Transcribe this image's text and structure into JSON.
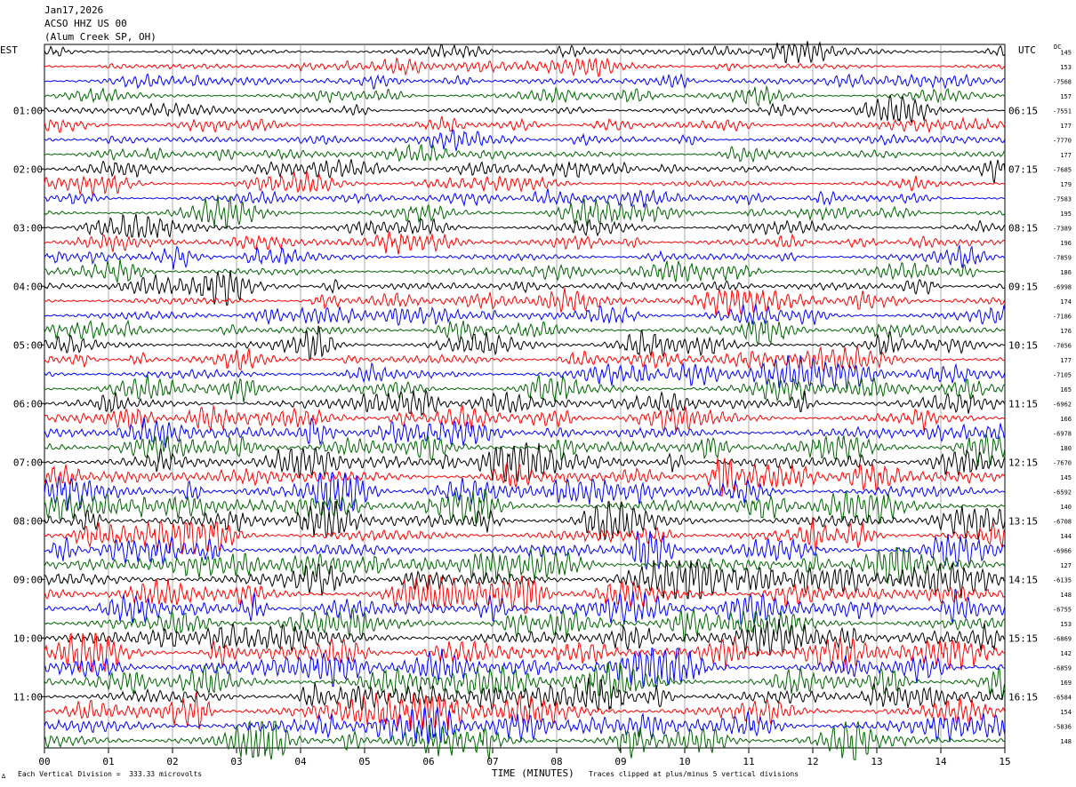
{
  "header": {
    "date": "Jan17,2026",
    "station": "ACSO HHZ US 00",
    "location": "(Alum Creek SP, OH)"
  },
  "labels": {
    "tz_left": "EST",
    "tz_right": "UTC",
    "dc": "DC",
    "vertical_division": "Each Vertical Division =  333.33 microvolts",
    "clip_note": "Traces clipped at plus/minus 5 vertical divisions",
    "logo": "∆"
  },
  "chart_data": {
    "type": "line",
    "xlabel": "TIME (MINUTES)",
    "xlim": [
      0,
      15
    ],
    "x_ticks": [
      "00",
      "01",
      "02",
      "03",
      "04",
      "05",
      "06",
      "07",
      "08",
      "09",
      "10",
      "11",
      "12",
      "13",
      "14",
      "15"
    ],
    "grid": true,
    "trace_colors": [
      "#000000",
      "#ff0000",
      "#0000ff",
      "#006400"
    ],
    "left_hour_labels": [
      "01:00",
      "02:00",
      "03:00",
      "04:00",
      "05:00",
      "06:00",
      "07:00",
      "08:00",
      "09:00",
      "10:00",
      "11:00"
    ],
    "right_hour_labels": [
      "06:15",
      "07:15",
      "08:15",
      "09:15",
      "10:15",
      "11:15",
      "12:15",
      "13:15",
      "14:15",
      "15:15",
      "16:15"
    ],
    "hour_label_first_row": 4,
    "rows_per_hour": 4,
    "dc_values": [
      "145",
      "153",
      "-7568",
      "157",
      "-7551",
      "177",
      "-7770",
      "177",
      "-7685",
      "179",
      "-7583",
      "195",
      "-7389",
      "196",
      "-7859",
      "186",
      "-6998",
      "174",
      "-7186",
      "176",
      "-7056",
      "177",
      "-7105",
      "165",
      "-6962",
      "166",
      "-6978",
      "180",
      "-7670",
      "145",
      "-6592",
      "140",
      "-6708",
      "144",
      "-6966",
      "127",
      "-6135",
      "148",
      "-6755",
      "153",
      "-6869",
      "142",
      "-6859",
      "169",
      "-6584",
      "154",
      "-5836",
      "148"
    ],
    "traces": [
      {
        "amplitude": 0.28,
        "seed": 1
      },
      {
        "amplitude": 0.28,
        "seed": 2
      },
      {
        "amplitude": 0.3,
        "seed": 3
      },
      {
        "amplitude": 0.3,
        "seed": 4
      },
      {
        "amplitude": 0.3,
        "seed": 5
      },
      {
        "amplitude": 0.3,
        "seed": 6
      },
      {
        "amplitude": 0.3,
        "seed": 7
      },
      {
        "amplitude": 0.3,
        "seed": 8
      },
      {
        "amplitude": 0.32,
        "seed": 9
      },
      {
        "amplitude": 0.32,
        "seed": 10
      },
      {
        "amplitude": 0.32,
        "seed": 11
      },
      {
        "amplitude": 0.34,
        "seed": 12
      },
      {
        "amplitude": 0.34,
        "seed": 13
      },
      {
        "amplitude": 0.34,
        "seed": 14
      },
      {
        "amplitude": 0.36,
        "seed": 15
      },
      {
        "amplitude": 0.36,
        "seed": 16
      },
      {
        "amplitude": 0.4,
        "seed": 17
      },
      {
        "amplitude": 0.4,
        "seed": 18
      },
      {
        "amplitude": 0.42,
        "seed": 19
      },
      {
        "amplitude": 0.42,
        "seed": 20
      },
      {
        "amplitude": 0.45,
        "seed": 21
      },
      {
        "amplitude": 0.45,
        "seed": 22
      },
      {
        "amplitude": 0.48,
        "seed": 23
      },
      {
        "amplitude": 0.5,
        "seed": 24
      },
      {
        "amplitude": 0.5,
        "seed": 25
      },
      {
        "amplitude": 0.52,
        "seed": 26
      },
      {
        "amplitude": 0.55,
        "seed": 27
      },
      {
        "amplitude": 0.6,
        "seed": 28
      },
      {
        "amplitude": 0.6,
        "seed": 29
      },
      {
        "amplitude": 0.6,
        "seed": 30
      },
      {
        "amplitude": 0.62,
        "seed": 31
      },
      {
        "amplitude": 0.62,
        "seed": 32
      },
      {
        "amplitude": 0.62,
        "seed": 33
      },
      {
        "amplitude": 0.62,
        "seed": 34
      },
      {
        "amplitude": 0.64,
        "seed": 35
      },
      {
        "amplitude": 0.64,
        "seed": 36
      },
      {
        "amplitude": 0.64,
        "seed": 37
      },
      {
        "amplitude": 0.64,
        "seed": 38
      },
      {
        "amplitude": 0.64,
        "seed": 39
      },
      {
        "amplitude": 0.66,
        "seed": 40
      },
      {
        "amplitude": 0.66,
        "seed": 41
      },
      {
        "amplitude": 0.66,
        "seed": 42
      },
      {
        "amplitude": 0.66,
        "seed": 43
      },
      {
        "amplitude": 0.68,
        "seed": 44
      },
      {
        "amplitude": 0.68,
        "seed": 45
      },
      {
        "amplitude": 0.68,
        "seed": 46
      },
      {
        "amplitude": 0.68,
        "seed": 47
      },
      {
        "amplitude": 0.7,
        "seed": 48
      }
    ]
  }
}
